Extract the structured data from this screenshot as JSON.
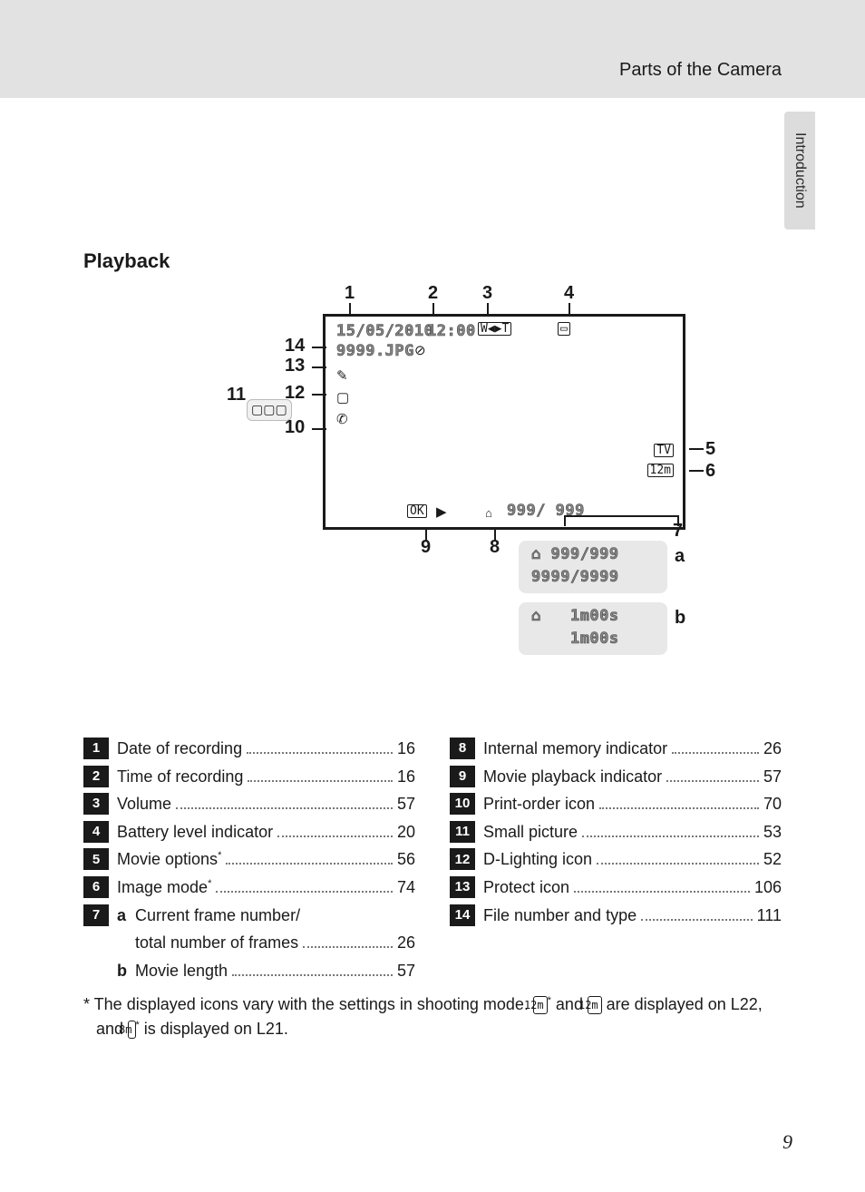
{
  "header": {
    "chapter": "Parts of the Camera",
    "side_tab": "Introduction"
  },
  "section_title": "Playback",
  "screen": {
    "date": "15/05/2010",
    "time": "12:00",
    "file": "9999.JPG",
    "frames": "999/ 999",
    "ok_label": "OK"
  },
  "callouts_top": {
    "1": "1",
    "2": "2",
    "3": "3",
    "4": "4"
  },
  "callouts_left": {
    "10": "10",
    "11": "11",
    "12": "12",
    "13": "13",
    "14": "14"
  },
  "callouts_right": {
    "5": "5",
    "6": "6",
    "7": "7",
    "a": "a",
    "b": "b"
  },
  "callouts_bottom": {
    "8": "8",
    "9": "9"
  },
  "detail_box": {
    "line1": "999/999",
    "line2": "9999/9999",
    "line3": "1m00s",
    "line4": "1m00s"
  },
  "legend_left": [
    {
      "n": "1",
      "lines": [
        {
          "label": "Date of recording",
          "page": "16"
        }
      ]
    },
    {
      "n": "2",
      "lines": [
        {
          "label": "Time of recording",
          "page": "16"
        }
      ]
    },
    {
      "n": "3",
      "lines": [
        {
          "label": "Volume",
          "page": "57"
        }
      ]
    },
    {
      "n": "4",
      "lines": [
        {
          "label": "Battery level indicator",
          "page": "20"
        }
      ]
    },
    {
      "n": "5",
      "lines": [
        {
          "label": "Movie options",
          "sup": "*",
          "page": "56"
        }
      ]
    },
    {
      "n": "6",
      "lines": [
        {
          "label": "Image mode",
          "sup": "*",
          "page": "74"
        }
      ]
    },
    {
      "n": "7",
      "lines": [
        {
          "letter": "a",
          "label": "Current frame number/",
          "nowrap": true
        },
        {
          "label": "total number of frames",
          "page": "26",
          "indent": true
        },
        {
          "letter": "b",
          "label": "Movie length",
          "page": "57"
        }
      ]
    }
  ],
  "legend_right": [
    {
      "n": "8",
      "lines": [
        {
          "label": "Internal memory indicator",
          "page": "26"
        }
      ]
    },
    {
      "n": "9",
      "lines": [
        {
          "label": "Movie playback indicator",
          "page": "57"
        }
      ]
    },
    {
      "n": "10",
      "lines": [
        {
          "label": "Print-order icon",
          "page": "70"
        }
      ]
    },
    {
      "n": "11",
      "lines": [
        {
          "label": "Small picture",
          "page": "53"
        }
      ]
    },
    {
      "n": "12",
      "lines": [
        {
          "label": "D-Lighting icon",
          "page": "52"
        }
      ]
    },
    {
      "n": "13",
      "lines": [
        {
          "label": "Protect icon",
          "page": "106"
        }
      ]
    },
    {
      "n": "14",
      "lines": [
        {
          "label": "File number and type",
          "page": "111"
        }
      ]
    }
  ],
  "footnote": {
    "pre": "*  The displayed icons vary with the settings in shooting mode. ",
    "ic1": "12m",
    "ic1_star": "*",
    "mid": " and ",
    "ic2": "12m",
    "post1": " are displayed on L22, and ",
    "ic3": "8m",
    "ic3_star": "*",
    "post2": " is displayed on L21."
  },
  "page_number": "9",
  "colors": {
    "header_bg": "#e2e2e2",
    "tab_bg": "#dcdcdc",
    "num_bg": "#1a1a1a"
  }
}
